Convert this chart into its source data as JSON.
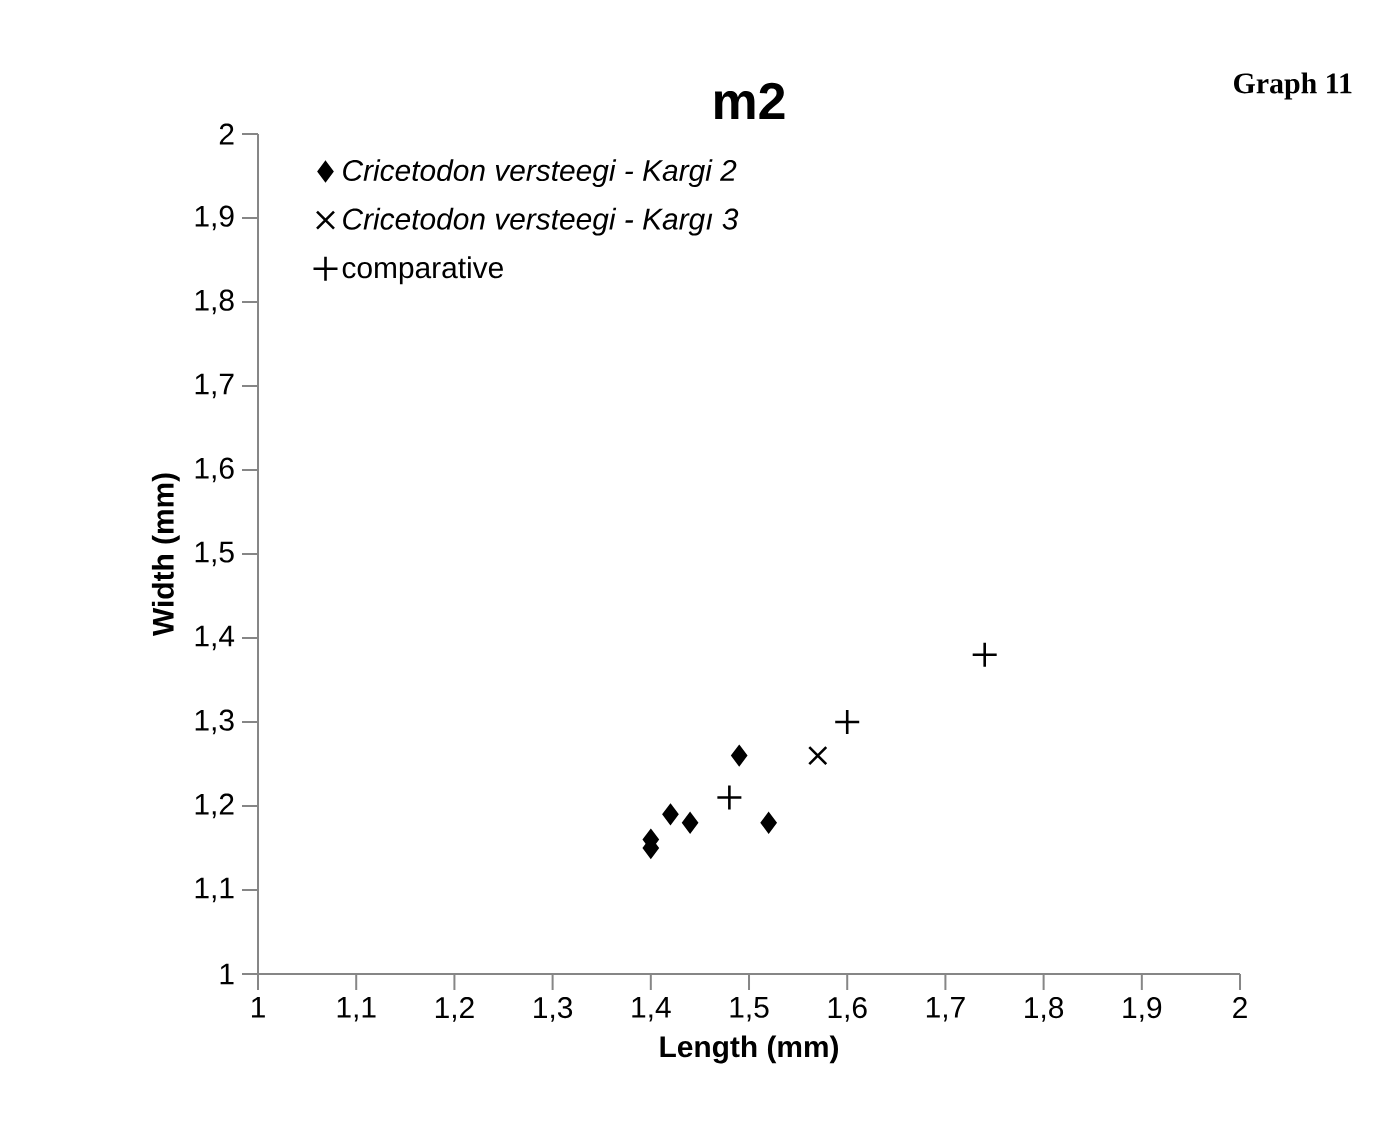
{
  "chart_data": {
    "type": "scatter",
    "title": "m2",
    "xlabel": "Length (mm)",
    "ylabel": "Width (mm)",
    "annotations": [
      "Graph 11"
    ],
    "xlim": [
      1,
      2
    ],
    "ylim": [
      1,
      2
    ],
    "xticks": [
      1,
      {
        "value": 1.1,
        "label": "1,1"
      },
      {
        "value": 1.2,
        "label": "1,2"
      },
      {
        "value": 1.3,
        "label": "1,3"
      },
      {
        "value": 1.4,
        "label": "1,4"
      },
      {
        "value": 1.5,
        "label": "1,5"
      },
      {
        "value": 1.6,
        "label": "1,6"
      },
      {
        "value": 1.7,
        "label": "1,7"
      },
      {
        "value": 1.8,
        "label": "1,8"
      },
      {
        "value": 1.9,
        "label": "1,9"
      },
      2
    ],
    "yticks": [
      1,
      {
        "value": 1.1,
        "label": "1,1"
      },
      {
        "value": 1.2,
        "label": "1,2"
      },
      {
        "value": 1.3,
        "label": "1,3"
      },
      {
        "value": 1.4,
        "label": "1,4"
      },
      {
        "value": 1.5,
        "label": "1,5"
      },
      {
        "value": 1.6,
        "label": "1,6"
      },
      {
        "value": 1.7,
        "label": "1,7"
      },
      {
        "value": 1.8,
        "label": "1,8"
      },
      {
        "value": 1.9,
        "label": "1,9"
      },
      2
    ],
    "grid": false,
    "legend": "top left",
    "series": [
      {
        "name": "Cricetodon versteegi - Kargi 2",
        "color": "#000000",
        "marker": "diamond",
        "x": [
          1.4,
          1.4,
          1.42,
          1.44,
          1.49,
          1.52
        ],
        "values": [
          1.15,
          1.16,
          1.19,
          1.18,
          1.26,
          1.18
        ]
      },
      {
        "name": "Cricetodon versteegi - Kargı 3",
        "color": "#000000",
        "marker": "cross",
        "x": [
          1.57
        ],
        "values": [
          1.26
        ]
      },
      {
        "name": "comparative",
        "color": "#000000",
        "marker": "plus",
        "x": [
          1.48,
          1.6,
          1.74
        ],
        "values": [
          1.21,
          1.3,
          1.38
        ]
      }
    ]
  }
}
